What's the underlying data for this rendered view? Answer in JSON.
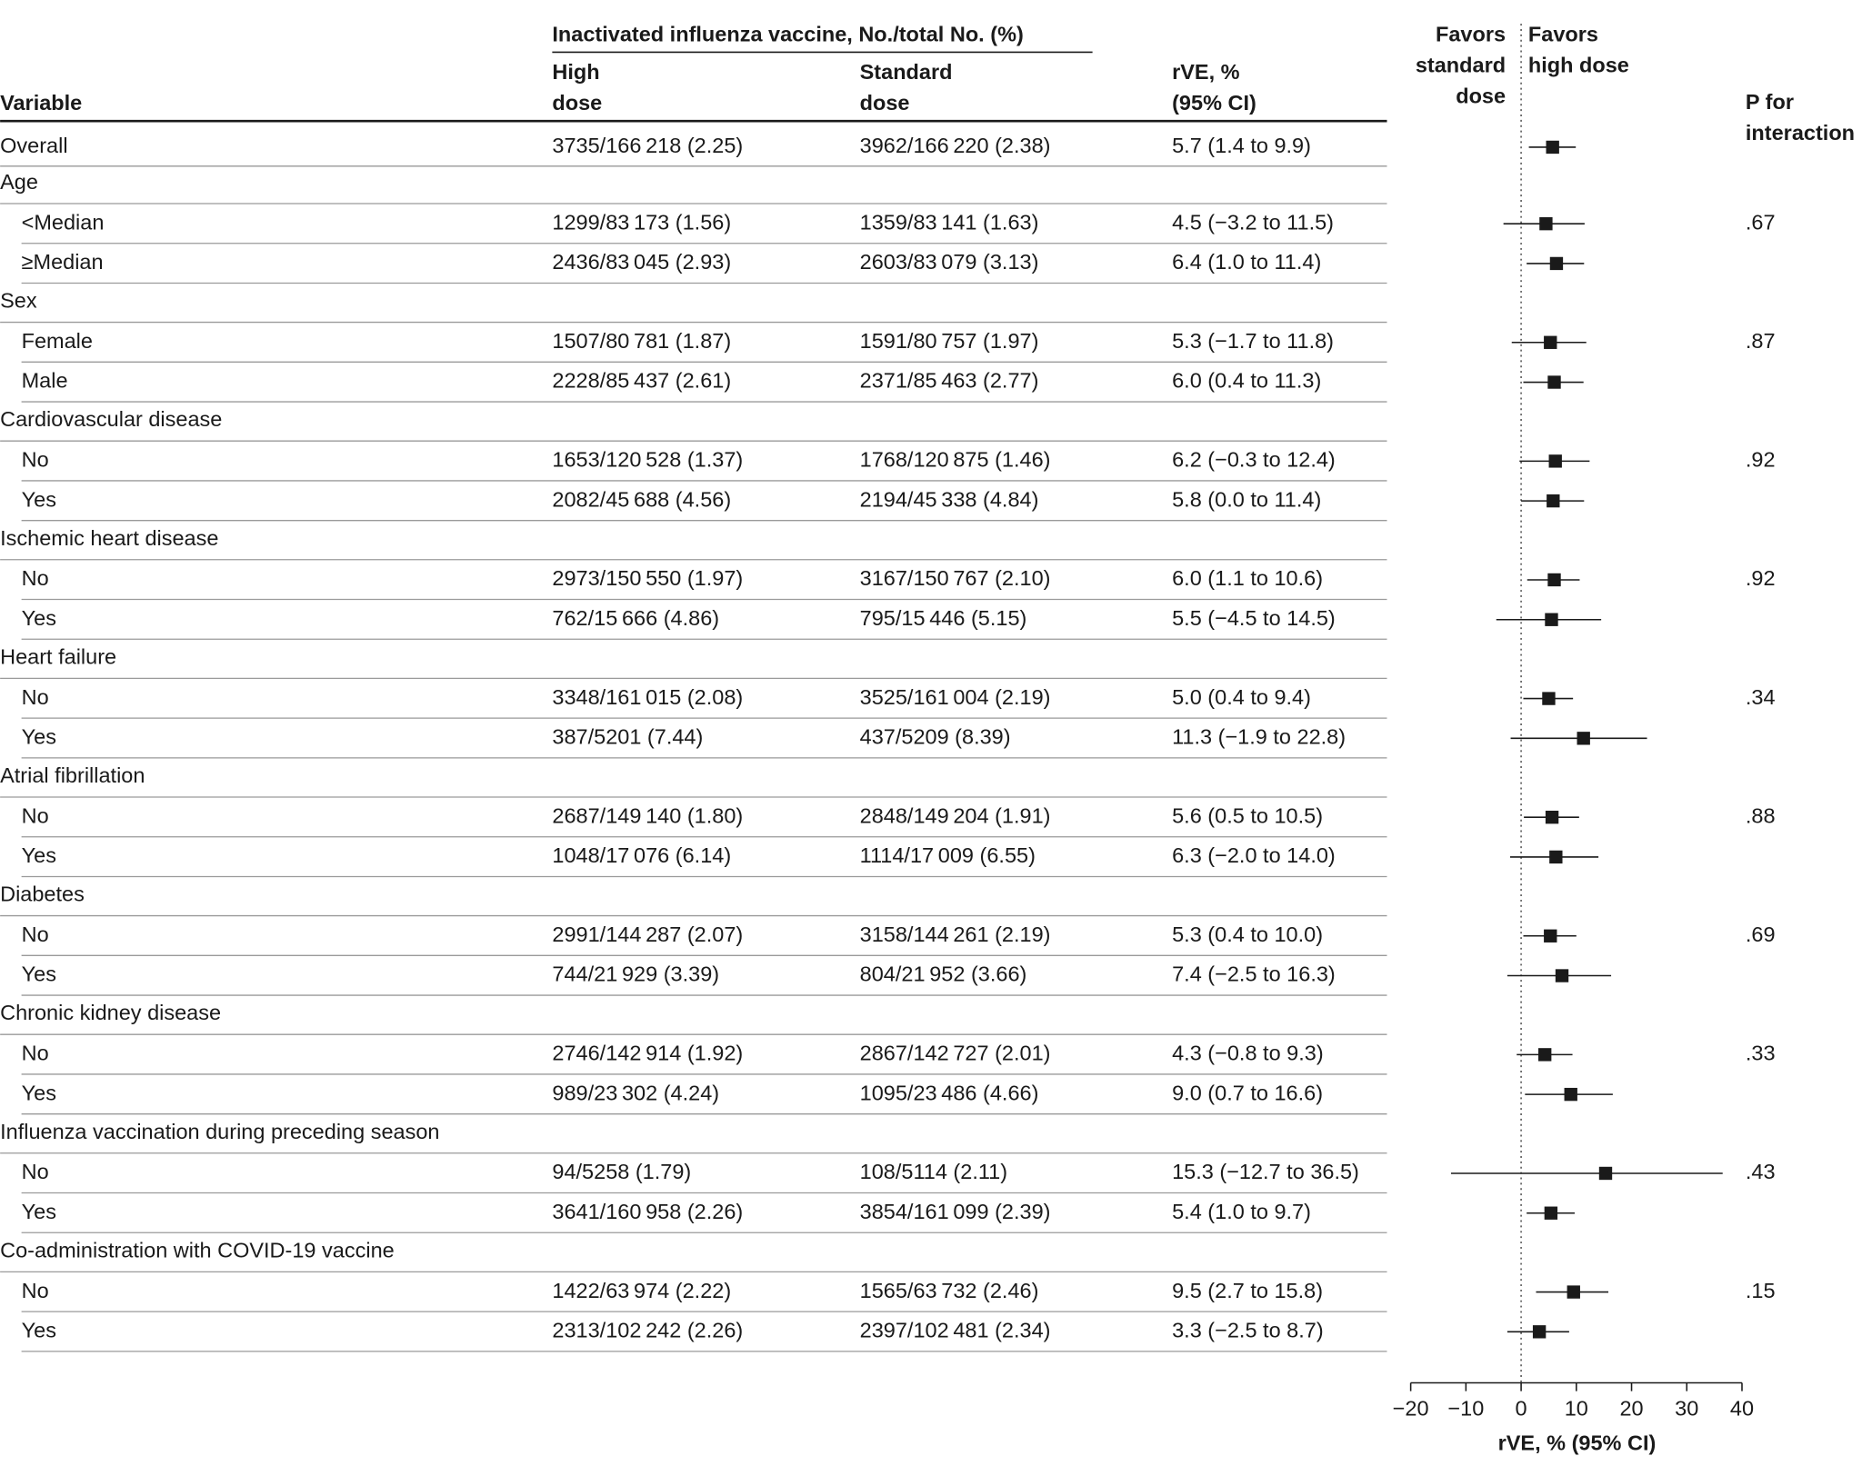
{
  "chart_data": {
    "type": "forest",
    "color": "#1a1a1a",
    "group_header": "Inactivated influenza vaccine, No./total No. (%)",
    "column_headers": {
      "variable": [
        "Variable"
      ],
      "high_dose": [
        "High",
        "dose"
      ],
      "standard_dose": [
        "Standard",
        "dose"
      ],
      "rve": [
        "rVE, %",
        "(95% CI)"
      ],
      "p": [
        "P for",
        "interaction"
      ]
    },
    "favors_left": [
      "Favors",
      "standard",
      "dose"
    ],
    "favors_right": [
      "Favors",
      "high dose"
    ],
    "xlabel": "rVE, % (95% CI)",
    "xlim": [
      -20,
      40
    ],
    "xticks": [
      {
        "value": -20,
        "label": "−20"
      },
      {
        "value": -10,
        "label": "−10"
      },
      0,
      10,
      20,
      30,
      40
    ],
    "overall": {
      "label": "Overall",
      "high_dose": "3735/166 218 (2.25)",
      "standard_dose": "3962/166 220 (2.38)",
      "rve": "5.7 (1.4 to 9.9)",
      "estimate": 5.7,
      "lower": 1.4,
      "upper": 9.9
    },
    "groups": [
      {
        "label": "Age",
        "p": ".67",
        "rows": [
          {
            "label": "<Median",
            "high_dose": "1299/83 173 (1.56)",
            "standard_dose": "1359/83 141 (1.63)",
            "rve": "4.5 (−3.2 to 11.5)",
            "estimate": 4.5,
            "lower": -3.2,
            "upper": 11.5
          },
          {
            "label": "≥Median",
            "high_dose": "2436/83 045 (2.93)",
            "standard_dose": "2603/83 079 (3.13)",
            "rve": "6.4 (1.0 to 11.4)",
            "estimate": 6.4,
            "lower": 1.0,
            "upper": 11.4
          }
        ]
      },
      {
        "label": "Sex",
        "p": ".87",
        "rows": [
          {
            "label": "Female",
            "high_dose": "1507/80 781 (1.87)",
            "standard_dose": "1591/80 757 (1.97)",
            "rve": "5.3 (−1.7 to 11.8)",
            "estimate": 5.3,
            "lower": -1.7,
            "upper": 11.8
          },
          {
            "label": "Male",
            "high_dose": "2228/85 437 (2.61)",
            "standard_dose": "2371/85 463 (2.77)",
            "rve": "6.0 (0.4 to 11.3)",
            "estimate": 6.0,
            "lower": 0.4,
            "upper": 11.3
          }
        ]
      },
      {
        "label": "Cardiovascular disease",
        "p": ".92",
        "rows": [
          {
            "label": "No",
            "high_dose": "1653/120 528 (1.37)",
            "standard_dose": "1768/120 875 (1.46)",
            "rve": "6.2 (−0.3 to 12.4)",
            "estimate": 6.2,
            "lower": -0.3,
            "upper": 12.4
          },
          {
            "label": "Yes",
            "high_dose": "2082/45 688 (4.56)",
            "standard_dose": "2194/45 338 (4.84)",
            "rve": "5.8 (0.0 to 11.4)",
            "estimate": 5.8,
            "lower": 0.0,
            "upper": 11.4
          }
        ]
      },
      {
        "label": "Ischemic heart disease",
        "p": ".92",
        "rows": [
          {
            "label": "No",
            "high_dose": "2973/150 550 (1.97)",
            "standard_dose": "3167/150 767 (2.10)",
            "rve": "6.0 (1.1 to 10.6)",
            "estimate": 6.0,
            "lower": 1.1,
            "upper": 10.6
          },
          {
            "label": "Yes",
            "high_dose": "762/15 666 (4.86)",
            "standard_dose": "795/15 446 (5.15)",
            "rve": "5.5 (−4.5 to 14.5)",
            "estimate": 5.5,
            "lower": -4.5,
            "upper": 14.5
          }
        ]
      },
      {
        "label": "Heart failure",
        "p": ".34",
        "rows": [
          {
            "label": "No",
            "high_dose": "3348/161 015 (2.08)",
            "standard_dose": "3525/161 004 (2.19)",
            "rve": "5.0 (0.4 to 9.4)",
            "estimate": 5.0,
            "lower": 0.4,
            "upper": 9.4
          },
          {
            "label": "Yes",
            "high_dose": "387/5201 (7.44)",
            "standard_dose": "437/5209 (8.39)",
            "rve": "11.3 (−1.9 to 22.8)",
            "estimate": 11.3,
            "lower": -1.9,
            "upper": 22.8
          }
        ]
      },
      {
        "label": "Atrial fibrillation",
        "p": ".88",
        "rows": [
          {
            "label": "No",
            "high_dose": "2687/149 140 (1.80)",
            "standard_dose": "2848/149 204 (1.91)",
            "rve": "5.6 (0.5 to 10.5)",
            "estimate": 5.6,
            "lower": 0.5,
            "upper": 10.5
          },
          {
            "label": "Yes",
            "high_dose": "1048/17 076 (6.14)",
            "standard_dose": "1114/17 009 (6.55)",
            "rve": "6.3 (−2.0 to 14.0)",
            "estimate": 6.3,
            "lower": -2.0,
            "upper": 14.0
          }
        ]
      },
      {
        "label": "Diabetes",
        "p": ".69",
        "rows": [
          {
            "label": "No",
            "high_dose": "2991/144 287 (2.07)",
            "standard_dose": "3158/144 261 (2.19)",
            "rve": "5.3 (0.4 to 10.0)",
            "estimate": 5.3,
            "lower": 0.4,
            "upper": 10.0
          },
          {
            "label": "Yes",
            "high_dose": "744/21 929 (3.39)",
            "standard_dose": "804/21 952 (3.66)",
            "rve": "7.4 (−2.5 to 16.3)",
            "estimate": 7.4,
            "lower": -2.5,
            "upper": 16.3
          }
        ]
      },
      {
        "label": "Chronic kidney disease",
        "p": ".33",
        "rows": [
          {
            "label": "No",
            "high_dose": "2746/142 914 (1.92)",
            "standard_dose": "2867/142 727 (2.01)",
            "rve": "4.3 (−0.8 to 9.3)",
            "estimate": 4.3,
            "lower": -0.8,
            "upper": 9.3
          },
          {
            "label": "Yes",
            "high_dose": "989/23 302 (4.24)",
            "standard_dose": "1095/23 486 (4.66)",
            "rve": "9.0 (0.7 to 16.6)",
            "estimate": 9.0,
            "lower": 0.7,
            "upper": 16.6
          }
        ]
      },
      {
        "label": "Influenza vaccination during preceding season",
        "p": ".43",
        "rows": [
          {
            "label": "No",
            "high_dose": "94/5258 (1.79)",
            "standard_dose": "108/5114 (2.11)",
            "rve": "15.3 (−12.7 to 36.5)",
            "estimate": 15.3,
            "lower": -12.7,
            "upper": 36.5
          },
          {
            "label": "Yes",
            "high_dose": "3641/160 958 (2.26)",
            "standard_dose": "3854/161 099 (2.39)",
            "rve": "5.4 (1.0 to 9.7)",
            "estimate": 5.4,
            "lower": 1.0,
            "upper": 9.7
          }
        ]
      },
      {
        "label": "Co-administration with COVID-19 vaccine",
        "p": ".15",
        "rows": [
          {
            "label": "No",
            "high_dose": "1422/63 974 (2.22)",
            "standard_dose": "1565/63 732 (2.46)",
            "rve": "9.5 (2.7 to 15.8)",
            "estimate": 9.5,
            "lower": 2.7,
            "upper": 15.8
          },
          {
            "label": "Yes",
            "high_dose": "2313/102 242 (2.26)",
            "standard_dose": "2397/102 481 (2.34)",
            "rve": "3.3 (−2.5 to 8.7)",
            "estimate": 3.3,
            "lower": -2.5,
            "upper": 8.7
          }
        ]
      }
    ]
  }
}
